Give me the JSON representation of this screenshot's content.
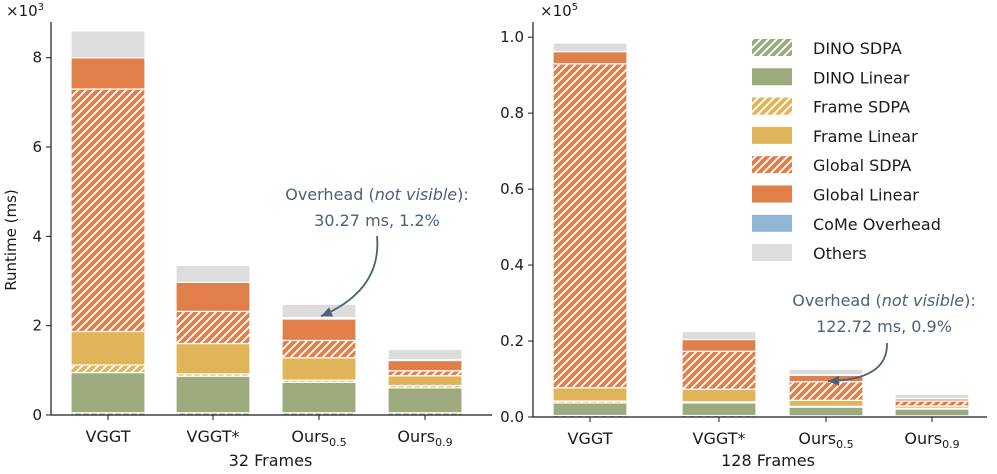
{
  "chart_data": [
    {
      "type": "bar",
      "stacked": true,
      "title": "32 Frames",
      "ylabel": "Runtime (ms)",
      "y_multiplier_label": "×10",
      "y_multiplier_exp": "3",
      "ylim": [
        0,
        8.8
      ],
      "yticks": [
        0,
        2,
        4,
        6,
        8
      ],
      "ytick_labels": [
        "0",
        "2",
        "4",
        "6",
        "8"
      ],
      "categories": [
        "VGGT",
        "VGGT*",
        "Ours",
        "Ours"
      ],
      "category_subscripts": [
        "",
        "",
        "0.5",
        "0.9"
      ],
      "series": [
        {
          "name": "DINO SDPA",
          "values": [
            0.05,
            0.05,
            0.05,
            0.05
          ]
        },
        {
          "name": "DINO Linear",
          "values": [
            0.9,
            0.82,
            0.68,
            0.56
          ]
        },
        {
          "name": "Frame SDPA",
          "values": [
            0.17,
            0.05,
            0.05,
            0.05
          ]
        },
        {
          "name": "Frame Linear",
          "values": [
            0.75,
            0.68,
            0.5,
            0.22
          ]
        },
        {
          "name": "Global SDPA",
          "values": [
            5.43,
            0.72,
            0.39,
            0.11
          ]
        },
        {
          "name": "Global Linear",
          "values": [
            0.7,
            0.65,
            0.48,
            0.23
          ]
        },
        {
          "name": "CoMe Overhead",
          "values": [
            0,
            0,
            0.03,
            0.02
          ]
        },
        {
          "name": "Others",
          "values": [
            0.6,
            0.38,
            0.3,
            0.23
          ]
        }
      ],
      "annotation": {
        "target_category": "Ours",
        "line1_prefix": "Overhead (",
        "line1_italic": "not visible",
        "line1_suffix": "):",
        "line2": "30.27 ms, 1.2%"
      }
    },
    {
      "type": "bar",
      "stacked": true,
      "title": "128 Frames",
      "ylabel": "",
      "y_multiplier_label": "×10",
      "y_multiplier_exp": "5",
      "ylim": [
        0,
        1.04
      ],
      "yticks": [
        0,
        0.2,
        0.4,
        0.6,
        0.8,
        1.0
      ],
      "ytick_labels": [
        "0.0",
        "0.2",
        "0.4",
        "0.6",
        "0.8",
        "1.0"
      ],
      "categories": [
        "VGGT",
        "VGGT*",
        "Ours",
        "Ours"
      ],
      "category_subscripts": [
        "",
        "",
        "0.5",
        "0.9"
      ],
      "series": [
        {
          "name": "DINO SDPA",
          "values": [
            0.004,
            0.004,
            0.003,
            0.003
          ]
        },
        {
          "name": "DINO Linear",
          "values": [
            0.033,
            0.033,
            0.023,
            0.018
          ]
        },
        {
          "name": "Frame SDPA",
          "values": [
            0.005,
            0.003,
            0.002,
            0.002
          ]
        },
        {
          "name": "Frame Linear",
          "values": [
            0.035,
            0.033,
            0.016,
            0.006
          ]
        },
        {
          "name": "Global SDPA",
          "values": [
            0.853,
            0.1,
            0.049,
            0.013
          ]
        },
        {
          "name": "Global Linear",
          "values": [
            0.032,
            0.031,
            0.017,
            0.006
          ]
        },
        {
          "name": "CoMe Overhead",
          "values": [
            0,
            0,
            0.001,
            0.001
          ]
        },
        {
          "name": "Others",
          "values": [
            0.023,
            0.021,
            0.015,
            0.011
          ]
        }
      ],
      "annotation": {
        "target_category": "Ours",
        "line1_prefix": "Overhead (",
        "line1_italic": "not visible",
        "line1_suffix": "):",
        "line2": "122.72 ms, 0.9%"
      }
    }
  ],
  "legend": {
    "position": "upper-right of right panel",
    "items": [
      {
        "label": "DINO SDPA",
        "color": "#9daa7e",
        "hatch": true
      },
      {
        "label": "DINO Linear",
        "color": "#9daa7e",
        "hatch": false
      },
      {
        "label": "Frame SDPA",
        "color": "#e0b55a",
        "hatch": true
      },
      {
        "label": "Frame Linear",
        "color": "#e0b55a",
        "hatch": false
      },
      {
        "label": "Global SDPA",
        "color": "#e07f4a",
        "hatch": true
      },
      {
        "label": "Global Linear",
        "color": "#e07f4a",
        "hatch": false
      },
      {
        "label": "CoMe Overhead",
        "color": "#92b6d6",
        "hatch": false
      },
      {
        "label": "Others",
        "color": "#dcdcdc",
        "hatch": false
      }
    ]
  },
  "colors": {
    "dino": "#9daa7e",
    "frame": "#e0b55a",
    "global": "#e07f4a",
    "come": "#92b6d6",
    "others": "#dcdcdc",
    "annotation": "#4a6274"
  }
}
